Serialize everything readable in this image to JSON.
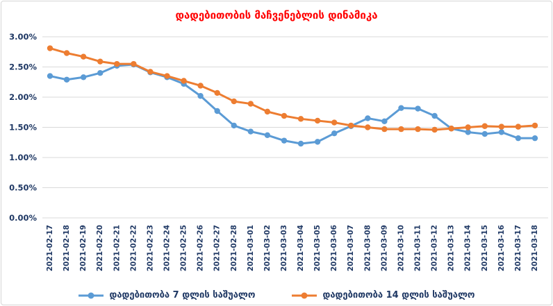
{
  "title": "დადებითობის მაჩვენებლის დინამიკა",
  "colors": {
    "title": "#ff0000",
    "axis_text": "#1f3864",
    "gridline": "#d9d9d9",
    "frame_border": "#d6d6d6",
    "series_7day": "#5b9bd5",
    "series_14day": "#ed7d31"
  },
  "chart_data": {
    "type": "line",
    "title": "დადებითობის მაჩვენებლის დინამიკა",
    "xlabel": "",
    "ylabel": "",
    "ylim": [
      0,
      3.0
    ],
    "grid": true,
    "legend_position": "bottom",
    "yticks": [
      {
        "value": 0.0,
        "label": "0.00%"
      },
      {
        "value": 0.5,
        "label": "0.50%"
      },
      {
        "value": 1.0,
        "label": "1.00%"
      },
      {
        "value": 1.5,
        "label": "1.50%"
      },
      {
        "value": 2.0,
        "label": "2.00%"
      },
      {
        "value": 2.5,
        "label": "2.50%"
      },
      {
        "value": 3.0,
        "label": "3.00%"
      }
    ],
    "categories": [
      "2021-02-17",
      "2021-02-18",
      "2021-02-19",
      "2021-02-20",
      "2021-02-21",
      "2021-02-22",
      "2021-02-23",
      "2021-02-24",
      "2021-02-25",
      "2021-02-26",
      "2021-02-27",
      "2021-02-28",
      "2021-03-01",
      "2021-03-02",
      "2021-03-03",
      "2021-03-04",
      "2021-03-05",
      "2021-03-06",
      "2021-03-07",
      "2021-03-08",
      "2021-03-09",
      "2021-03-10",
      "2021-03-11",
      "2021-03-12",
      "2021-03-13",
      "2021-03-14",
      "2021-03-15",
      "2021-03-16",
      "2021-03-17",
      "2021-03-18"
    ],
    "series": [
      {
        "name": "დადებითობა 7 დლის საშუალო",
        "color": "#5b9bd5",
        "values": [
          2.35,
          2.29,
          2.33,
          2.4,
          2.52,
          2.54,
          2.41,
          2.33,
          2.22,
          2.02,
          1.77,
          1.53,
          1.43,
          1.37,
          1.28,
          1.23,
          1.26,
          1.4,
          1.52,
          1.65,
          1.6,
          1.82,
          1.81,
          1.69,
          1.48,
          1.42,
          1.39,
          1.42,
          1.32,
          1.32
        ]
      },
      {
        "name": "დადებითობა 14 დლის საშუალო",
        "color": "#ed7d31",
        "values": [
          2.81,
          2.73,
          2.67,
          2.59,
          2.55,
          2.55,
          2.42,
          2.35,
          2.27,
          2.19,
          2.07,
          1.93,
          1.89,
          1.76,
          1.69,
          1.64,
          1.61,
          1.58,
          1.53,
          1.5,
          1.47,
          1.47,
          1.47,
          1.46,
          1.48,
          1.5,
          1.52,
          1.51,
          1.51,
          1.53
        ]
      }
    ]
  }
}
